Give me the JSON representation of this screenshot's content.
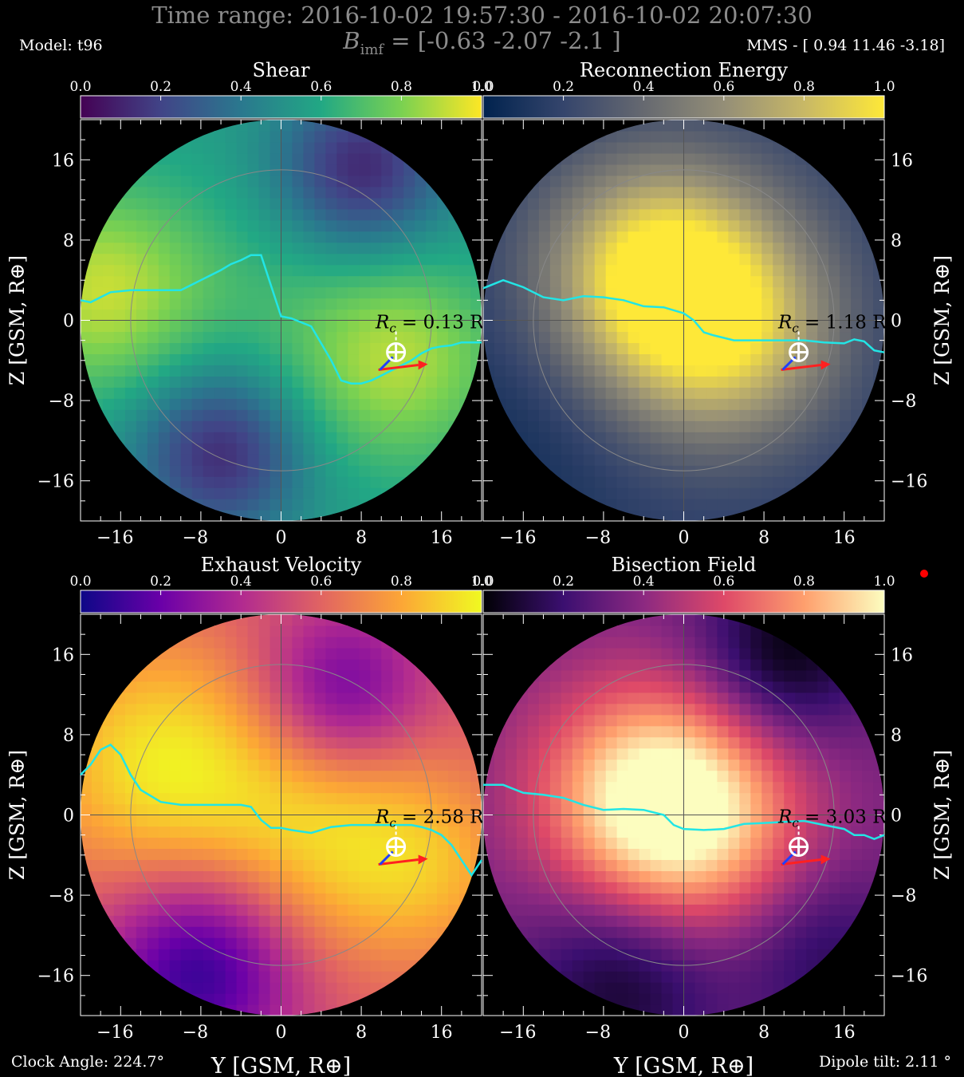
{
  "header": {
    "time_range": "Time range:  2016-10-02 19:57:30 - 2016-10-02 20:07:30",
    "bimf_symbol": "B",
    "bimf_subscript": "imf",
    "bimf_value": " = [-0.63 -2.07 -2.1 ]",
    "model": "Model: t96",
    "mms": "MMS - [ 0.94 11.46 -3.18]"
  },
  "footer": {
    "clock_angle": "Clock Angle: 224.7°",
    "dipole_tilt": "Dipole tilt: 2.11 °"
  },
  "axes": {
    "xlabel": "Y [GSM, R⊕]",
    "ylabel": "Z [GSM, R⊕]",
    "ticks": [
      -16,
      -8,
      0,
      8,
      16
    ],
    "lim": [
      -20,
      20
    ],
    "colorbar_ticks": [
      "0.0",
      "0.2",
      "0.4",
      "0.6",
      "0.8",
      "1.0"
    ]
  },
  "spacecraft": {
    "y": 11.46,
    "z": -3.18
  },
  "marker_color": "#ff0000",
  "chart_data": [
    {
      "type": "heatmap",
      "title": "Shear",
      "colormap": "viridis",
      "rc_label": "R",
      "rc_sub": "c",
      "rc_value": "= 0.13 R",
      "xlim": [
        -20,
        20
      ],
      "ylim": [
        -20,
        20
      ],
      "line_color": "#22e5e5",
      "line": [
        [
          -20,
          2
        ],
        [
          -19,
          1.8
        ],
        [
          -17,
          2.8
        ],
        [
          -15,
          3
        ],
        [
          -12,
          3
        ],
        [
          -10,
          3
        ],
        [
          -9,
          3.5
        ],
        [
          -7,
          4.5
        ],
        [
          -6,
          5
        ],
        [
          -5,
          5.6
        ],
        [
          -4,
          6
        ],
        [
          -3,
          6.5
        ],
        [
          -2,
          6.5
        ],
        [
          0,
          0.4
        ],
        [
          1,
          0.2
        ],
        [
          2,
          -0.2
        ],
        [
          3,
          -0.6
        ],
        [
          5,
          -4
        ],
        [
          6,
          -6
        ],
        [
          7,
          -6.3
        ],
        [
          8,
          -6.3
        ],
        [
          9,
          -6
        ],
        [
          10,
          -5.5
        ],
        [
          11,
          -5
        ],
        [
          12,
          -4.5
        ],
        [
          13,
          -4
        ],
        [
          14,
          -3.3
        ],
        [
          15,
          -2.8
        ],
        [
          16,
          -2.6
        ],
        [
          17,
          -2.5
        ],
        [
          18,
          -2.2
        ],
        [
          20,
          -2.2
        ]
      ]
    },
    {
      "type": "heatmap",
      "title": "Reconnection Energy",
      "colormap": "cividis",
      "rc_label": "R",
      "rc_sub": "c",
      "rc_value": "= 1.18 R",
      "xlim": [
        -20,
        20
      ],
      "ylim": [
        -20,
        20
      ],
      "line_color": "#22e5e5",
      "line": [
        [
          -20,
          3.2
        ],
        [
          -18,
          4
        ],
        [
          -16,
          3.3
        ],
        [
          -14,
          2.3
        ],
        [
          -12,
          2
        ],
        [
          -10,
          2.4
        ],
        [
          -8,
          2.3
        ],
        [
          -6,
          2
        ],
        [
          -4,
          1.4
        ],
        [
          -2,
          1.3
        ],
        [
          0,
          0.7
        ],
        [
          1,
          0
        ],
        [
          2,
          -1.2
        ],
        [
          3,
          -1.5
        ],
        [
          5,
          -2
        ],
        [
          8,
          -2
        ],
        [
          12,
          -2
        ],
        [
          14,
          -2.2
        ],
        [
          16,
          -2.3
        ],
        [
          17,
          -1.9
        ],
        [
          18,
          -2.1
        ],
        [
          19,
          -3
        ],
        [
          20,
          -3.2
        ]
      ]
    },
    {
      "type": "heatmap",
      "title": "Exhaust Velocity",
      "colormap": "plasma",
      "rc_label": "R",
      "rc_sub": "c",
      "rc_value": "= 2.58 R",
      "xlim": [
        -20,
        20
      ],
      "ylim": [
        -20,
        20
      ],
      "line_color": "#22e5e5",
      "line": [
        [
          -20,
          4
        ],
        [
          -19,
          5
        ],
        [
          -18,
          6.5
        ],
        [
          -17,
          7
        ],
        [
          -16,
          6
        ],
        [
          -15,
          4
        ],
        [
          -14,
          2.5
        ],
        [
          -12,
          1.3
        ],
        [
          -10,
          1
        ],
        [
          -8,
          1
        ],
        [
          -6,
          1
        ],
        [
          -4,
          1
        ],
        [
          -3,
          0.8
        ],
        [
          -2,
          -0.5
        ],
        [
          -1,
          -1.3
        ],
        [
          0,
          -1.3
        ],
        [
          1,
          -1.5
        ],
        [
          3,
          -1.8
        ],
        [
          5,
          -1.2
        ],
        [
          7,
          -1
        ],
        [
          9,
          -1
        ],
        [
          11,
          -1
        ],
        [
          13,
          -1
        ],
        [
          14,
          -1.2
        ],
        [
          15,
          -1.5
        ],
        [
          16,
          -2
        ],
        [
          17,
          -3
        ],
        [
          18,
          -4.5
        ],
        [
          19,
          -6
        ],
        [
          20,
          -4.5
        ]
      ]
    },
    {
      "type": "heatmap",
      "title": "Bisection Field",
      "colormap": "magma",
      "rc_label": "R",
      "rc_sub": "c",
      "rc_value": "= 3.03 R",
      "xlim": [
        -20,
        20
      ],
      "ylim": [
        -20,
        20
      ],
      "line_color": "#22e5e5",
      "line": [
        [
          -20,
          3
        ],
        [
          -18,
          3
        ],
        [
          -16,
          2.2
        ],
        [
          -14,
          2
        ],
        [
          -12,
          1.7
        ],
        [
          -10,
          1
        ],
        [
          -8,
          0.5
        ],
        [
          -6,
          0.6
        ],
        [
          -4,
          0.5
        ],
        [
          -2,
          0
        ],
        [
          -1,
          -1
        ],
        [
          0,
          -1.4
        ],
        [
          2,
          -1.5
        ],
        [
          4,
          -1.4
        ],
        [
          6,
          -0.9
        ],
        [
          8,
          -0.8
        ],
        [
          10,
          -0.7
        ],
        [
          12,
          -0.6
        ],
        [
          14,
          -1
        ],
        [
          16,
          -1.4
        ],
        [
          17,
          -2
        ],
        [
          18,
          -2
        ],
        [
          19,
          -2.4
        ],
        [
          20,
          -2
        ]
      ]
    }
  ]
}
